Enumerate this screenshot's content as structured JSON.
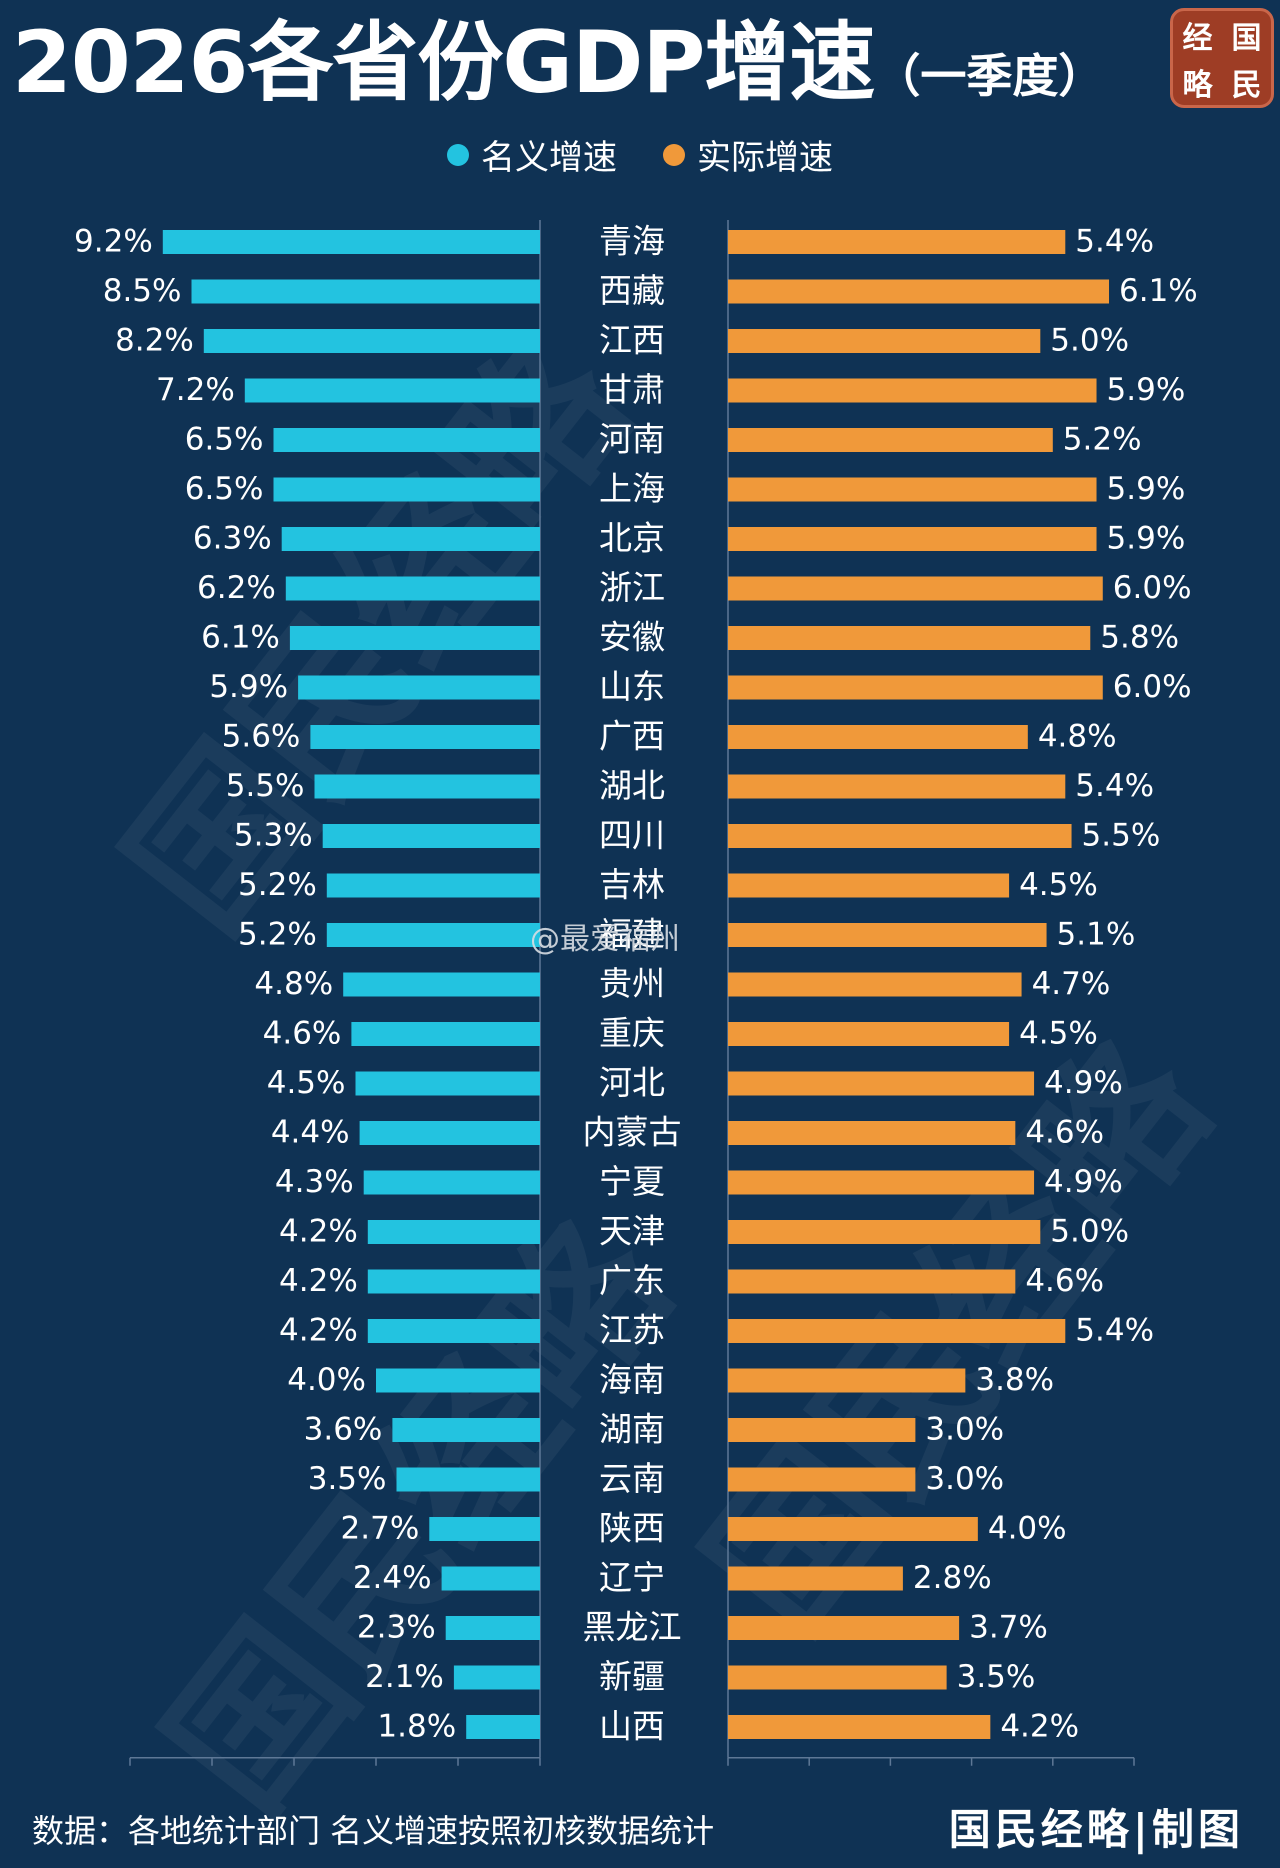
{
  "title": {
    "main": "2026各省份GDP增速",
    "sub": "（一季度）"
  },
  "logo": {
    "chars": [
      "经",
      "国",
      "略",
      "民"
    ]
  },
  "legend": [
    {
      "label": "名义增速",
      "color": "#23c3e0"
    },
    {
      "label": "实际增速",
      "color": "#f0993a"
    }
  ],
  "watermark_text": "国民经略",
  "weibo_text": "@最爱福州",
  "footer": {
    "source": "数据：各地统计部门 名义增速按照初核数据统计",
    "brand": "国民经略|制图"
  },
  "chart_data": {
    "type": "bar",
    "orientation": "horizontal-butterfly",
    "unit": "%",
    "categories": [
      "青海",
      "西藏",
      "江西",
      "甘肃",
      "河南",
      "上海",
      "北京",
      "浙江",
      "安徽",
      "山东",
      "广西",
      "湖北",
      "四川",
      "吉林",
      "福建",
      "贵州",
      "重庆",
      "河北",
      "内蒙古",
      "宁夏",
      "天津",
      "广东",
      "江苏",
      "海南",
      "湖南",
      "云南",
      "陕西",
      "辽宁",
      "黑龙江",
      "新疆",
      "山西"
    ],
    "series": [
      {
        "name": "名义增速",
        "color": "#23c3e0",
        "direction": "left",
        "xlim": [
          0,
          10
        ],
        "values": [
          9.2,
          8.5,
          8.2,
          7.2,
          6.5,
          6.5,
          6.3,
          6.2,
          6.1,
          5.9,
          5.6,
          5.5,
          5.3,
          5.2,
          5.2,
          4.8,
          4.6,
          4.5,
          4.4,
          4.3,
          4.2,
          4.2,
          4.2,
          4.0,
          3.6,
          3.5,
          2.7,
          2.4,
          2.3,
          2.1,
          1.8
        ],
        "labels": [
          "9.2%",
          "8.5%",
          "8.2%",
          "7.2%",
          "6.5%",
          "6.5%",
          "6.3%",
          "6.2%",
          "6.1%",
          "5.9%",
          "5.6%",
          "5.5%",
          "5.3%",
          "5.2%",
          "5.2%",
          "4.8%",
          "4.6%",
          "4.5%",
          "4.4%",
          "4.3%",
          "4.2%",
          "4.2%",
          "4.2%",
          "4.0%",
          "3.6%",
          "3.5%",
          "2.7%",
          "2.4%",
          "2.3%",
          "2.1%",
          "1.8%"
        ]
      },
      {
        "name": "实际增速",
        "color": "#f0993a",
        "direction": "right",
        "xlim": [
          0,
          6.5
        ],
        "values": [
          5.4,
          6.1,
          5.0,
          5.9,
          5.2,
          5.9,
          5.9,
          6.0,
          5.8,
          6.0,
          4.8,
          5.4,
          5.5,
          4.5,
          5.1,
          4.7,
          4.5,
          4.9,
          4.6,
          4.9,
          5.0,
          4.6,
          5.4,
          3.8,
          3.0,
          3.0,
          4.0,
          2.8,
          3.7,
          3.5,
          4.2
        ],
        "labels": [
          "5.4%",
          "6.1%",
          "5.0%",
          "5.9%",
          "5.2%",
          "5.9%",
          "5.9%",
          "6.0%",
          "5.8%",
          "6.0%",
          "4.8%",
          "5.4%",
          "5.5%",
          "4.5%",
          "5.1%",
          "4.7%",
          "4.5%",
          "4.9%",
          "4.6%",
          "4.9%",
          "5.0%",
          "4.6%",
          "5.4%",
          "3.8%",
          "3.0%",
          "3.0%",
          "4.0%",
          "2.8%",
          "3.7%",
          "3.5%",
          "4.2%"
        ]
      }
    ]
  }
}
